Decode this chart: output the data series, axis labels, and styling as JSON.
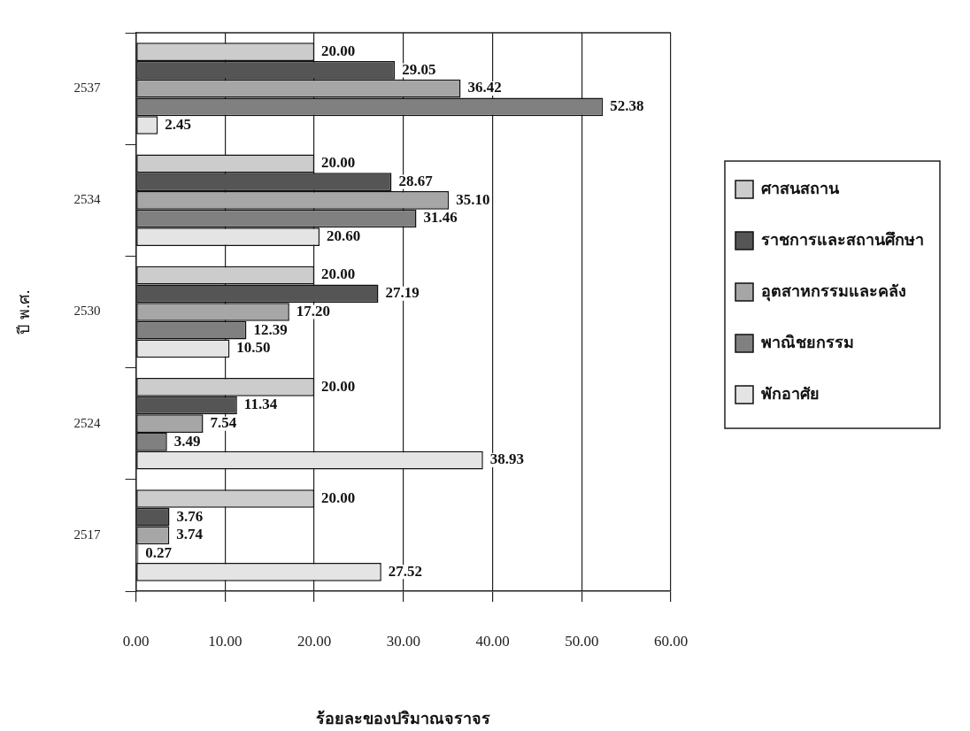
{
  "chart_data": {
    "type": "bar",
    "orientation": "horizontal",
    "xlabel": "ร้อยละของปริมาณจราจร",
    "ylabel": "ปี พ.ศ.",
    "categories": [
      "2537",
      "2534",
      "2530",
      "2524",
      "2517"
    ],
    "series": [
      {
        "name": "ศาสนสถาน",
        "color": "#cccccc",
        "values": [
          20,
          20,
          20,
          20,
          20
        ],
        "value_labels": [
          "20.00",
          "20.00",
          "20.00",
          "20.00",
          "20.00"
        ]
      },
      {
        "name": "ราชการและสถานศึกษา",
        "color": "#555555",
        "values": [
          29.05,
          28.67,
          27.19,
          11.34,
          3.76
        ],
        "value_labels": [
          "29.05",
          "28.67",
          "27.19",
          "11.34",
          "3.76"
        ]
      },
      {
        "name": "อุตสาหกรรมและคลัง",
        "color": "#a6a6a6",
        "values": [
          36.42,
          35.1,
          17.2,
          7.54,
          3.74
        ],
        "value_labels": [
          "36.42",
          "35.10",
          "17.20",
          "7.54",
          "3.74"
        ]
      },
      {
        "name": "พาณิชยกรรม",
        "color": "#808080",
        "values": [
          52.38,
          31.46,
          12.39,
          3.49,
          0.27
        ],
        "value_labels": [
          "52.38",
          "31.46",
          "12.39",
          "3.49",
          "0.27"
        ]
      },
      {
        "name": "พักอาศัย",
        "color": "#e4e4e4",
        "values": [
          2.45,
          20.6,
          10.5,
          38.93,
          27.52
        ],
        "value_labels": [
          "2.45",
          "20.60",
          "10.50",
          "38.93",
          "27.52"
        ]
      }
    ],
    "xlim": [
      0,
      60
    ],
    "xticks": [
      {
        "value": 0,
        "label": "0.00"
      },
      {
        "value": 10,
        "label": "10.00"
      },
      {
        "value": 20,
        "label": "20.00"
      },
      {
        "value": 30,
        "label": "30.00"
      },
      {
        "value": 40,
        "label": "40.00"
      },
      {
        "value": 50,
        "label": "50.00"
      },
      {
        "value": 60,
        "label": "60.00"
      }
    ],
    "grid": "x",
    "legend": "right"
  }
}
